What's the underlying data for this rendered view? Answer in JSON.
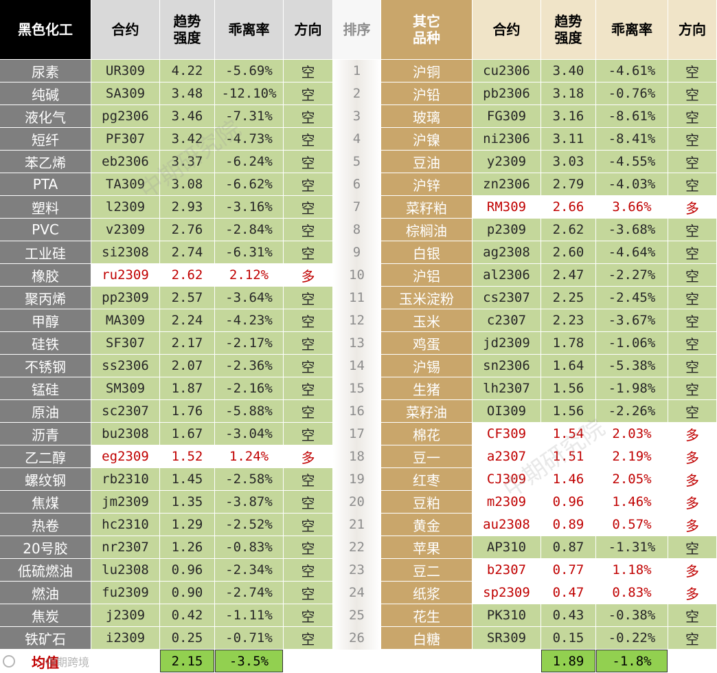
{
  "headers": {
    "left_category": "黑色化工",
    "contract": "合约",
    "strength": [
      "趋势",
      "强度"
    ],
    "deviation": "乖离率",
    "direction": "方向",
    "rank": "排序",
    "right_category": [
      "其它",
      "品种"
    ]
  },
  "ranks": [
    "1",
    "2",
    "3",
    "4",
    "5",
    "6",
    "7",
    "8",
    "9",
    "10",
    "11",
    "12",
    "13",
    "14",
    "15",
    "16",
    "17",
    "18",
    "19",
    "20",
    "21",
    "22",
    "23",
    "24",
    "25",
    "26"
  ],
  "left_rows": [
    {
      "name": "尿素",
      "contract": "UR309",
      "strength": "4.22",
      "deviation": "-5.69%",
      "direction": "空"
    },
    {
      "name": "纯碱",
      "contract": "SA309",
      "strength": "3.48",
      "deviation": "-12.10%",
      "direction": "空"
    },
    {
      "name": "液化气",
      "contract": "pg2306",
      "strength": "3.46",
      "deviation": "-7.31%",
      "direction": "空"
    },
    {
      "name": "短纤",
      "contract": "PF307",
      "strength": "3.42",
      "deviation": "-4.73%",
      "direction": "空"
    },
    {
      "name": "苯乙烯",
      "contract": "eb2306",
      "strength": "3.37",
      "deviation": "-6.24%",
      "direction": "空"
    },
    {
      "name": "PTA",
      "contract": "TA309",
      "strength": "3.08",
      "deviation": "-6.62%",
      "direction": "空"
    },
    {
      "name": "塑料",
      "contract": "l2309",
      "strength": "2.93",
      "deviation": "-3.16%",
      "direction": "空"
    },
    {
      "name": "PVC",
      "contract": "v2309",
      "strength": "2.76",
      "deviation": "-2.84%",
      "direction": "空"
    },
    {
      "name": "工业硅",
      "contract": "si2308",
      "strength": "2.74",
      "deviation": "-6.31%",
      "direction": "空"
    },
    {
      "name": "橡胶",
      "contract": "ru2309",
      "strength": "2.62",
      "deviation": "2.12%",
      "direction": "多"
    },
    {
      "name": "聚丙烯",
      "contract": "pp2309",
      "strength": "2.57",
      "deviation": "-3.64%",
      "direction": "空"
    },
    {
      "name": "甲醇",
      "contract": "MA309",
      "strength": "2.24",
      "deviation": "-4.23%",
      "direction": "空"
    },
    {
      "name": "硅铁",
      "contract": "SF307",
      "strength": "2.17",
      "deviation": "-2.17%",
      "direction": "空"
    },
    {
      "name": "不锈钢",
      "contract": "ss2306",
      "strength": "2.07",
      "deviation": "-2.36%",
      "direction": "空"
    },
    {
      "name": "锰硅",
      "contract": "SM309",
      "strength": "1.87",
      "deviation": "-2.16%",
      "direction": "空"
    },
    {
      "name": "原油",
      "contract": "sc2307",
      "strength": "1.76",
      "deviation": "-5.88%",
      "direction": "空"
    },
    {
      "name": "沥青",
      "contract": "bu2308",
      "strength": "1.67",
      "deviation": "-3.04%",
      "direction": "空"
    },
    {
      "name": "乙二醇",
      "contract": "eg2309",
      "strength": "1.52",
      "deviation": "1.24%",
      "direction": "多"
    },
    {
      "name": "螺纹钢",
      "contract": "rb2310",
      "strength": "1.45",
      "deviation": "-2.58%",
      "direction": "空"
    },
    {
      "name": "焦煤",
      "contract": "jm2309",
      "strength": "1.35",
      "deviation": "-3.87%",
      "direction": "空"
    },
    {
      "name": "热卷",
      "contract": "hc2310",
      "strength": "1.29",
      "deviation": "-2.52%",
      "direction": "空"
    },
    {
      "name": "20号胶",
      "contract": "nr2307",
      "strength": "1.26",
      "deviation": "-0.83%",
      "direction": "空"
    },
    {
      "name": "低硫燃油",
      "contract": "lu2308",
      "strength": "0.96",
      "deviation": "-2.34%",
      "direction": "空"
    },
    {
      "name": "燃油",
      "contract": "fu2309",
      "strength": "0.90",
      "deviation": "-2.74%",
      "direction": "空"
    },
    {
      "name": "焦炭",
      "contract": "j2309",
      "strength": "0.42",
      "deviation": "-1.11%",
      "direction": "空"
    },
    {
      "name": "铁矿石",
      "contract": "i2309",
      "strength": "0.25",
      "deviation": "-0.71%",
      "direction": "空"
    }
  ],
  "right_rows": [
    {
      "name": "沪铜",
      "contract": "cu2306",
      "strength": "3.40",
      "deviation": "-4.61%",
      "direction": "空"
    },
    {
      "name": "沪铅",
      "contract": "pb2306",
      "strength": "3.18",
      "deviation": "-0.76%",
      "direction": "空"
    },
    {
      "name": "玻璃",
      "contract": "FG309",
      "strength": "3.16",
      "deviation": "-8.61%",
      "direction": "空"
    },
    {
      "name": "沪镍",
      "contract": "ni2306",
      "strength": "3.11",
      "deviation": "-8.41%",
      "direction": "空"
    },
    {
      "name": "豆油",
      "contract": "y2309",
      "strength": "3.03",
      "deviation": "-4.55%",
      "direction": "空"
    },
    {
      "name": "沪锌",
      "contract": "zn2306",
      "strength": "2.79",
      "deviation": "-4.03%",
      "direction": "空"
    },
    {
      "name": "菜籽粕",
      "contract": "RM309",
      "strength": "2.66",
      "deviation": "3.66%",
      "direction": "多"
    },
    {
      "name": "棕榈油",
      "contract": "p2309",
      "strength": "2.62",
      "deviation": "-3.68%",
      "direction": "空"
    },
    {
      "name": "白银",
      "contract": "ag2308",
      "strength": "2.60",
      "deviation": "-4.64%",
      "direction": "空"
    },
    {
      "name": "沪铝",
      "contract": "al2306",
      "strength": "2.47",
      "deviation": "-2.27%",
      "direction": "空"
    },
    {
      "name": "玉米淀粉",
      "contract": "cs2307",
      "strength": "2.25",
      "deviation": "-2.45%",
      "direction": "空"
    },
    {
      "name": "玉米",
      "contract": "c2307",
      "strength": "2.23",
      "deviation": "-3.67%",
      "direction": "空"
    },
    {
      "name": "鸡蛋",
      "contract": "jd2309",
      "strength": "1.78",
      "deviation": "-1.06%",
      "direction": "空"
    },
    {
      "name": "沪锡",
      "contract": "sn2306",
      "strength": "1.64",
      "deviation": "-5.38%",
      "direction": "空"
    },
    {
      "name": "生猪",
      "contract": "lh2307",
      "strength": "1.56",
      "deviation": "-1.98%",
      "direction": "空"
    },
    {
      "name": "菜籽油",
      "contract": "OI309",
      "strength": "1.56",
      "deviation": "-2.26%",
      "direction": "空"
    },
    {
      "name": "棉花",
      "contract": "CF309",
      "strength": "1.54",
      "deviation": "2.03%",
      "direction": "多"
    },
    {
      "name": "豆一",
      "contract": "a2307",
      "strength": "1.51",
      "deviation": "2.19%",
      "direction": "多"
    },
    {
      "name": "红枣",
      "contract": "CJ309",
      "strength": "1.46",
      "deviation": "2.05%",
      "direction": "多"
    },
    {
      "name": "豆粕",
      "contract": "m2309",
      "strength": "0.96",
      "deviation": "1.46%",
      "direction": "多"
    },
    {
      "name": "黄金",
      "contract": "au2308",
      "strength": "0.89",
      "deviation": "0.57%",
      "direction": "多"
    },
    {
      "name": "苹果",
      "contract": "AP310",
      "strength": "0.87",
      "deviation": "-1.31%",
      "direction": "空"
    },
    {
      "name": "豆二",
      "contract": "b2307",
      "strength": "0.77",
      "deviation": "1.18%",
      "direction": "多"
    },
    {
      "name": "纸浆",
      "contract": "sp2309",
      "strength": "0.47",
      "deviation": "0.83%",
      "direction": "多"
    },
    {
      "name": "花生",
      "contract": "PK310",
      "strength": "0.43",
      "deviation": "-0.38%",
      "direction": "空"
    },
    {
      "name": "白糖",
      "contract": "SR309",
      "strength": "0.15",
      "deviation": "-0.22%",
      "direction": "空"
    }
  ],
  "footer": {
    "label": "均值",
    "left_strength_avg": "2.15",
    "left_deviation_avg": "-3.5%",
    "right_strength_avg": "1.89",
    "right_deviation_avg": "-1.8%"
  },
  "watermarks": [
    "中期研究院",
    "中期研究院"
  ],
  "logo_text": "中期跨境",
  "colors": {
    "header_left_bg": "#000000",
    "header_right_bg": "#c9a66b",
    "header_gray_bg": "#d9d9d9",
    "header_tan_bg": "#f0e4c8",
    "name_left_bg": "#7f7f7f",
    "name_right_bg": "#c9a66b",
    "data_green_bg": "#c4d79b",
    "long_highlight_bg": "#ffffff",
    "long_text": "#c00000",
    "footer_avg_bg": "#92d050",
    "footer_label_text": "#c00000"
  }
}
